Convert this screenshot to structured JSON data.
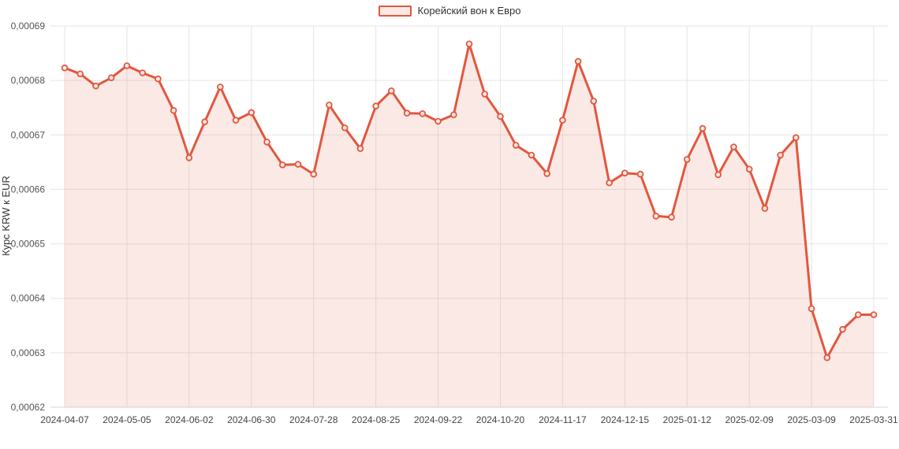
{
  "legend": {
    "series_label": "Корейский вон к Евро"
  },
  "chart_data": {
    "type": "area",
    "title": "",
    "ylabel": "Курс KRW к EUR",
    "xlabel": "",
    "legend_label": "Корейский вон к Евро",
    "legend_position": "top-center",
    "grid": true,
    "ylim": [
      0.00062,
      0.00069
    ],
    "ytick_step": 1e-05,
    "ytick_labels": [
      "0,00062",
      "0,00063",
      "0,00064",
      "0,00065",
      "0,00066",
      "0,00067",
      "0,00068",
      "0,00069"
    ],
    "xtick_every": 4,
    "xtick_labels": [
      "2024-04-07",
      "2024-05-05",
      "2024-06-02",
      "2024-06-30",
      "2024-07-28",
      "2024-08-25",
      "2024-09-22",
      "2024-10-20",
      "2024-11-17",
      "2024-12-15",
      "2025-01-12",
      "2025-02-09",
      "2025-03-09",
      "2025-03-31"
    ],
    "x": [
      "2024-04-07",
      "2024-04-14",
      "2024-04-21",
      "2024-04-28",
      "2024-05-05",
      "2024-05-12",
      "2024-05-19",
      "2024-05-26",
      "2024-06-02",
      "2024-06-09",
      "2024-06-16",
      "2024-06-23",
      "2024-06-30",
      "2024-07-07",
      "2024-07-14",
      "2024-07-21",
      "2024-07-28",
      "2024-08-04",
      "2024-08-11",
      "2024-08-18",
      "2024-08-25",
      "2024-09-01",
      "2024-09-08",
      "2024-09-15",
      "2024-09-22",
      "2024-09-29",
      "2024-10-06",
      "2024-10-13",
      "2024-10-20",
      "2024-10-27",
      "2024-11-03",
      "2024-11-10",
      "2024-11-17",
      "2024-11-24",
      "2024-12-01",
      "2024-12-08",
      "2024-12-15",
      "2024-12-22",
      "2024-12-29",
      "2025-01-05",
      "2025-01-12",
      "2025-01-19",
      "2025-01-26",
      "2025-02-02",
      "2025-02-09",
      "2025-02-16",
      "2025-02-23",
      "2025-03-02",
      "2025-03-09",
      "2025-03-16",
      "2025-03-23",
      "2025-03-30",
      "2025-03-31"
    ],
    "values": [
      0.0006823,
      0.0006812,
      0.000679,
      0.0006805,
      0.0006827,
      0.0006814,
      0.0006803,
      0.0006745,
      0.0006658,
      0.0006724,
      0.0006788,
      0.0006727,
      0.0006741,
      0.0006687,
      0.0006645,
      0.0006646,
      0.0006628,
      0.0006755,
      0.0006713,
      0.0006675,
      0.0006753,
      0.0006781,
      0.000674,
      0.0006739,
      0.0006725,
      0.0006737,
      0.0006867,
      0.0006775,
      0.0006734,
      0.0006681,
      0.0006663,
      0.0006629,
      0.0006727,
      0.0006835,
      0.0006762,
      0.0006612,
      0.000663,
      0.0006628,
      0.0006551,
      0.0006549,
      0.0006655,
      0.0006712,
      0.0006627,
      0.0006678,
      0.0006637,
      0.0006565,
      0.0006663,
      0.0006695,
      0.0006381,
      0.0006291,
      0.0006343,
      0.000637,
      0.000637
    ],
    "colors": {
      "line": "#E2573E",
      "area_fill": "rgba(226,87,62,0.13)",
      "marker_fill": "#fbe9e4",
      "grid": "#e6e6e6",
      "axis_line": "#d6d6d6",
      "tick_text": "#555555",
      "label_text": "#333333"
    }
  }
}
